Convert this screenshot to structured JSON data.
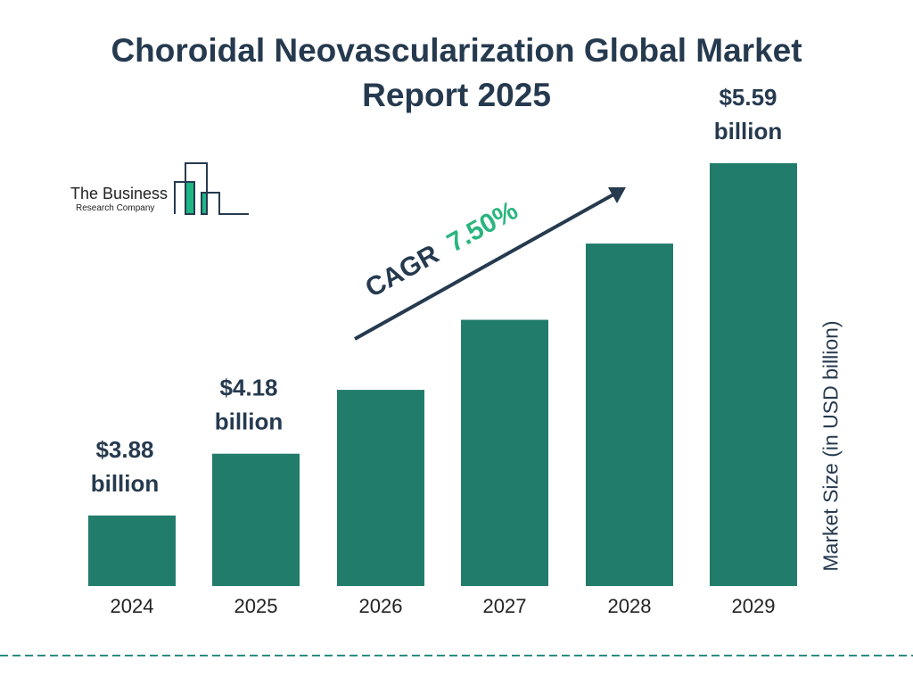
{
  "title": "Choroidal Neovascularization Global Market Report 2025",
  "logo": {
    "line1": "The Business",
    "line2": "Research Company"
  },
  "colors": {
    "bar": "#217c6b",
    "text": "#263a4f",
    "cagr": "#2bb57e",
    "logo_green": "#1fb784",
    "dash": "#2a8c80"
  },
  "chart_data": {
    "type": "bar",
    "title": "Choroidal Neovascularization Global Market Report 2025",
    "categories": [
      "2024",
      "2025",
      "2026",
      "2027",
      "2028",
      "2029"
    ],
    "values": [
      3.88,
      4.18,
      4.49,
      4.83,
      5.2,
      5.59
    ],
    "data_labels": [
      {
        "value": "$3.88",
        "unit": "billion"
      },
      {
        "value": "$4.18",
        "unit": "billion"
      },
      null,
      null,
      null,
      {
        "value": "$5.59",
        "unit": "billion"
      }
    ],
    "ylabel": "Market Size (in USD billion)",
    "xlabel": "",
    "grid": false,
    "annotation": {
      "prefix": "CAGR",
      "value": "7.50%"
    }
  }
}
